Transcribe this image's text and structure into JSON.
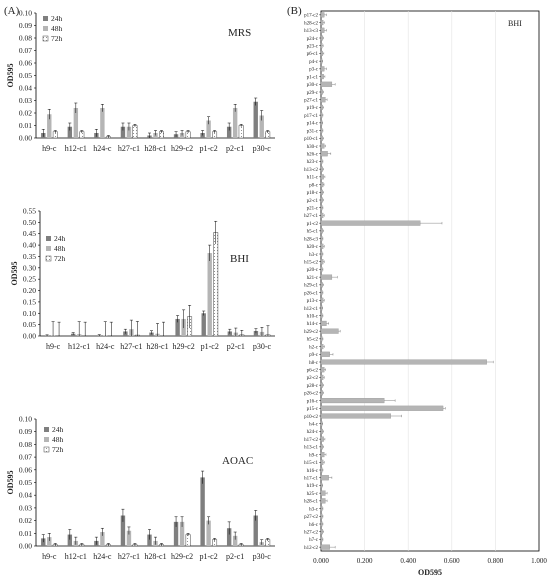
{
  "panel_labels": {
    "a": "(A)",
    "b": "(B)"
  },
  "chart_data": [
    {
      "type": "bar",
      "title": "MRS",
      "ylabel": "OD595",
      "ylim": [
        0,
        0.1
      ],
      "yticks": [
        "0.00",
        "0.01",
        "0.02",
        "0.03",
        "0.04",
        "0.05",
        "0.06",
        "0.07",
        "0.08",
        "0.09",
        "0.10"
      ],
      "legend": "top-left",
      "categories": [
        "h9-c",
        "h12-c1",
        "h24-c",
        "h27-c1",
        "h28-c1",
        "h29-c2",
        "p1-c2",
        "p2-c1",
        "p30-c"
      ],
      "series": [
        {
          "name": "24h",
          "color": "#7f7f7f",
          "pattern": "solid",
          "values": [
            0.004,
            0.009,
            0.004,
            0.009,
            0.002,
            0.003,
            0.004,
            0.009,
            0.029
          ],
          "errors": [
            0.003,
            0.003,
            0.003,
            0.003,
            0.002,
            0.002,
            0.002,
            0.003,
            0.003
          ]
        },
        {
          "name": "48h",
          "color": "#b5b5b5",
          "pattern": "solid",
          "values": [
            0.019,
            0.024,
            0.024,
            0.009,
            0.004,
            0.004,
            0.014,
            0.024,
            0.018
          ],
          "errors": [
            0.004,
            0.004,
            0.003,
            0.003,
            0.002,
            0.002,
            0.003,
            0.003,
            0.004
          ]
        },
        {
          "name": "72h",
          "color": "#ffffff",
          "pattern": "dots",
          "values": [
            0.005,
            0.005,
            0.001,
            0.01,
            0.005,
            0.005,
            0.005,
            0.01,
            0.005
          ],
          "errors": [
            0.001,
            0.001,
            0.001,
            0.001,
            0.001,
            0.001,
            0.001,
            0.001,
            0.001
          ]
        }
      ]
    },
    {
      "type": "bar",
      "title": "BHI",
      "ylabel": "OD595",
      "ylim": [
        0,
        0.55
      ],
      "yticks": [
        "0.00",
        "0.05",
        "0.10",
        "0.15",
        "0.20",
        "0.25",
        "0.30",
        "0.35",
        "0.40",
        "0.45",
        "0.50",
        "0.55"
      ],
      "legend": "top-left",
      "categories": [
        "h9-c",
        "h12-c1",
        "h24-c",
        "h27-c1",
        "h28-c1",
        "h29-c2",
        "p1-c2",
        "p2-c1",
        "p30-c"
      ],
      "series": [
        {
          "name": "24h",
          "color": "#7f7f7f",
          "pattern": "solid",
          "values": [
            0.002,
            0.01,
            0.003,
            0.02,
            0.015,
            0.075,
            0.1,
            0.02,
            0.022
          ],
          "errors": [
            0.003,
            0.005,
            0.003,
            0.01,
            0.008,
            0.015,
            0.01,
            0.01,
            0.01
          ]
        },
        {
          "name": "48h",
          "color": "#b5b5b5",
          "pattern": "solid",
          "values": [
            0.003,
            0.008,
            0.003,
            0.03,
            0.01,
            0.075,
            0.365,
            0.015,
            0.018
          ],
          "errors": [
            0.06,
            0.055,
            0.06,
            0.04,
            0.045,
            0.04,
            0.035,
            0.02,
            0.02
          ]
        },
        {
          "name": "72h",
          "color": "#ffffff",
          "pattern": "dots",
          "values": [
            0.001,
            0.001,
            0.001,
            0.004,
            0.001,
            0.085,
            0.455,
            0.005,
            0.005
          ],
          "errors": [
            0.06,
            0.06,
            0.06,
            0.06,
            0.06,
            0.05,
            0.05,
            0.02,
            0.04
          ]
        }
      ]
    },
    {
      "type": "bar",
      "title": "AOAC",
      "ylabel": "OD595",
      "ylim": [
        0,
        0.1
      ],
      "yticks": [
        "0.00",
        "0.01",
        "0.02",
        "0.03",
        "0.04",
        "0.05",
        "0.06",
        "0.07",
        "0.08",
        "0.09",
        "0.10"
      ],
      "legend": "top-left",
      "categories": [
        "h9-c",
        "h12-c1",
        "h24-c",
        "h27-c1",
        "h28-c1",
        "h29-c2",
        "p1-c2",
        "p2-c1",
        "p30-c"
      ],
      "series": [
        {
          "name": "24h",
          "color": "#7f7f7f",
          "pattern": "solid",
          "values": [
            0.006,
            0.009,
            0.004,
            0.024,
            0.009,
            0.019,
            0.054,
            0.014,
            0.024
          ],
          "errors": [
            0.003,
            0.004,
            0.003,
            0.005,
            0.004,
            0.004,
            0.005,
            0.005,
            0.004
          ]
        },
        {
          "name": "48h",
          "color": "#b5b5b5",
          "pattern": "solid",
          "values": [
            0.007,
            0.004,
            0.011,
            0.012,
            0.004,
            0.019,
            0.02,
            0.008,
            0.003
          ],
          "errors": [
            0.003,
            0.003,
            0.003,
            0.003,
            0.003,
            0.004,
            0.003,
            0.003,
            0.002
          ]
        },
        {
          "name": "72h",
          "color": "#ffffff",
          "pattern": "dots",
          "values": [
            0.001,
            0.001,
            0.001,
            0.001,
            0.001,
            0.009,
            0.005,
            0.001,
            0.005
          ],
          "errors": [
            0.001,
            0.001,
            0.001,
            0.001,
            0.001,
            0.001,
            0.001,
            0.001,
            0.001
          ]
        }
      ]
    },
    {
      "type": "bar",
      "orientation": "horizontal",
      "title": "BHI",
      "xlabel": "OD595",
      "xlim": [
        0,
        1.0
      ],
      "xticks": [
        "0.000",
        "0.200",
        "0.400",
        "0.600",
        "0.800",
        "1.000"
      ],
      "color": "#b5b5b5",
      "categories": [
        "p17-c2",
        "h28-c2",
        "h13-c3",
        "p24-c",
        "p23-c",
        "p6-c1",
        "p4-c",
        "p3-c",
        "p1-c1",
        "p30-c",
        "p29-c",
        "p27-c1",
        "p19-c",
        "p17-c1",
        "p14-c",
        "p31-c",
        "p10-c1",
        "h30-c",
        "h26-c",
        "h23-c",
        "h13-c2",
        "h11-c",
        "p8-c",
        "p18-c",
        "p2-c1",
        "p21-c",
        "h27-c1",
        "p1-c2",
        "h5-c1",
        "h28-c3",
        "h20-c",
        "h3-c",
        "h15-c2",
        "p20-c",
        "h21-c",
        "h29-c1",
        "p26-c1",
        "p13-c",
        "h12-c1",
        "h10-c",
        "h14-c",
        "h29-c2",
        "h5-c2",
        "h2-c",
        "p9-c",
        "h8-c",
        "p6-c2",
        "p2-c2",
        "p28-c",
        "p26-c2",
        "p16-c",
        "p15-c",
        "p10-c2",
        "h4-c",
        "h24-c",
        "h17-c2",
        "h13-c1",
        "h9-c",
        "h15-c1",
        "h16-c",
        "h17-c1",
        "h19-c",
        "h25-c",
        "h28-c1",
        "h3-c",
        "p27-c2",
        "h6-c",
        "h27-c2",
        "h7-c",
        "h12-c2"
      ],
      "values": [
        0.015,
        0.01,
        0.015,
        0.008,
        0.006,
        0.008,
        0.005,
        0.015,
        0.012,
        0.05,
        0.008,
        0.02,
        0.008,
        0.006,
        0.005,
        0.006,
        0.008,
        0.015,
        0.03,
        0.006,
        0.008,
        0.012,
        0.01,
        0.008,
        0.008,
        0.006,
        0.01,
        0.455,
        0.008,
        0.006,
        0.01,
        0.006,
        0.01,
        0.006,
        0.05,
        0.008,
        0.006,
        0.01,
        0.005,
        0.006,
        0.025,
        0.08,
        0.006,
        0.01,
        0.04,
        0.76,
        0.015,
        0.01,
        0.008,
        0.008,
        0.29,
        0.56,
        0.32,
        0.005,
        0.008,
        0.012,
        0.008,
        0.015,
        0.01,
        0.006,
        0.035,
        0.005,
        0.02,
        0.02,
        0.006,
        0.006,
        0.006,
        0.008,
        0.006,
        0.04
      ],
      "errors": [
        0.01,
        0.006,
        0.01,
        0.004,
        0.004,
        0.005,
        0.003,
        0.01,
        0.006,
        0.015,
        0.004,
        0.008,
        0.004,
        0.003,
        0.003,
        0.003,
        0.004,
        0.006,
        0.015,
        0.003,
        0.004,
        0.006,
        0.004,
        0.004,
        0.004,
        0.003,
        0.005,
        0.1,
        0.004,
        0.003,
        0.005,
        0.003,
        0.005,
        0.003,
        0.025,
        0.004,
        0.003,
        0.005,
        0.003,
        0.003,
        0.01,
        0.008,
        0.003,
        0.006,
        0.015,
        0.03,
        0.006,
        0.005,
        0.004,
        0.004,
        0.05,
        0.01,
        0.05,
        0.003,
        0.004,
        0.006,
        0.004,
        0.008,
        0.005,
        0.003,
        0.015,
        0.003,
        0.008,
        0.008,
        0.003,
        0.003,
        0.003,
        0.004,
        0.003,
        0.025
      ]
    }
  ]
}
